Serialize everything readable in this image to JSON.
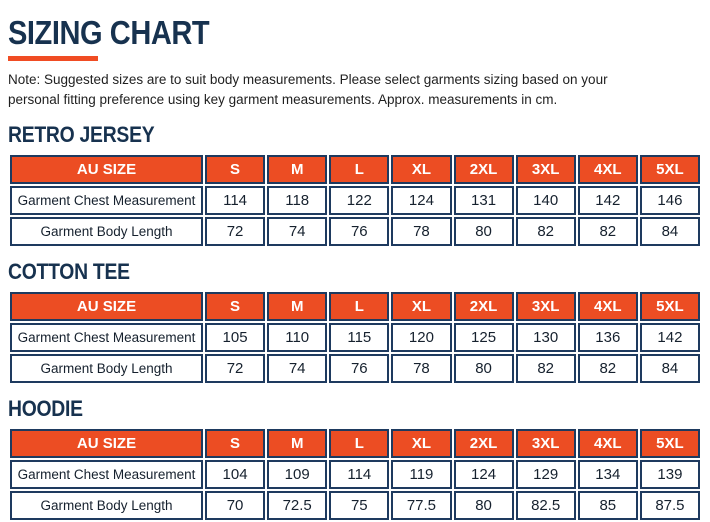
{
  "page": {
    "title": "SIZING CHART"
  },
  "note": {
    "line1": "Note: Suggested sizes are to suit body measurements. Please select garments sizing based on your",
    "line2": "personal fitting preference using key garment measurements. Approx. measurements in cm."
  },
  "colors": {
    "accent_orange": "#EC4D23",
    "border_navy": "#1E3A5F",
    "heading_navy": "#17324F",
    "header_text": "#FFFFFF"
  },
  "sections": [
    {
      "heading": "RETRO JERSEY",
      "table": {
        "header": [
          "AU SIZE",
          "S",
          "M",
          "L",
          "XL",
          "2XL",
          "3XL",
          "4XL",
          "5XL"
        ],
        "rows": [
          {
            "label": "Garment Chest Measurement",
            "values": [
              "114",
              "118",
              "122",
              "124",
              "131",
              "140",
              "142",
              "146"
            ]
          },
          {
            "label": "Garment Body Length",
            "values": [
              "72",
              "74",
              "76",
              "78",
              "80",
              "82",
              "82",
              "84"
            ]
          }
        ]
      }
    },
    {
      "heading": "COTTON TEE",
      "table": {
        "header": [
          "AU SIZE",
          "S",
          "M",
          "L",
          "XL",
          "2XL",
          "3XL",
          "4XL",
          "5XL"
        ],
        "rows": [
          {
            "label": "Garment Chest Measurement",
            "values": [
              "105",
              "110",
              "115",
              "120",
              "125",
              "130",
              "136",
              "142"
            ]
          },
          {
            "label": "Garment Body Length",
            "values": [
              "72",
              "74",
              "76",
              "78",
              "80",
              "82",
              "82",
              "84"
            ]
          }
        ]
      }
    },
    {
      "heading": "HOODIE",
      "table": {
        "header": [
          "AU SIZE",
          "S",
          "M",
          "L",
          "XL",
          "2XL",
          "3XL",
          "4XL",
          "5XL"
        ],
        "rows": [
          {
            "label": "Garment Chest Measurement",
            "values": [
              "104",
              "109",
              "114",
              "119",
              "124",
              "129",
              "134",
              "139"
            ]
          },
          {
            "label": "Garment Body Length",
            "values": [
              "70",
              "72.5",
              "75",
              "77.5",
              "80",
              "82.5",
              "85",
              "87.5"
            ]
          }
        ]
      }
    }
  ]
}
